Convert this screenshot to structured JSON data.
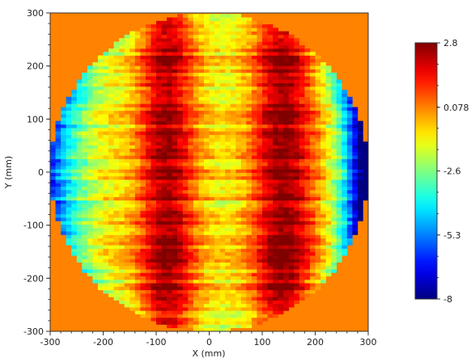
{
  "chart_data": {
    "type": "heatmap",
    "title": "",
    "xlabel": "X (mm)",
    "ylabel": "Y (mm)",
    "xlim": [
      -300,
      300
    ],
    "ylim": [
      -300,
      300
    ],
    "xticks": [
      -300,
      -200,
      -100,
      0,
      100,
      200,
      300
    ],
    "yticks": [
      -300,
      -200,
      -100,
      0,
      100,
      200,
      300
    ],
    "xtick_labels": [
      "-300",
      "-200",
      "-100",
      "0",
      "100",
      "200",
      "300"
    ],
    "ytick_labels": [
      "-300",
      "-200",
      "-100",
      "0",
      "100",
      "200",
      "300"
    ],
    "wafer_radius": 300,
    "background_value": 0.078,
    "grid": false,
    "colorbar": {
      "min": -8,
      "max": 2.8,
      "tick_values": [
        2.8,
        0.078,
        -2.6,
        -5.3,
        -8
      ],
      "tick_labels": [
        "2.8",
        "0.078",
        "-2.6",
        "-5.3",
        "-8"
      ],
      "colormap": "jet",
      "placement": "right"
    },
    "cell_size_x": 10,
    "cell_size_y": 6.5,
    "surface_model": {
      "description_keys": [
        "center_x",
        "amplitude"
      ],
      "left_peak_center_x": -80,
      "right_peak_center_x": 140,
      "peak_value": 2.8,
      "edge_right_min": -8,
      "edge_left_min": -4
    }
  }
}
